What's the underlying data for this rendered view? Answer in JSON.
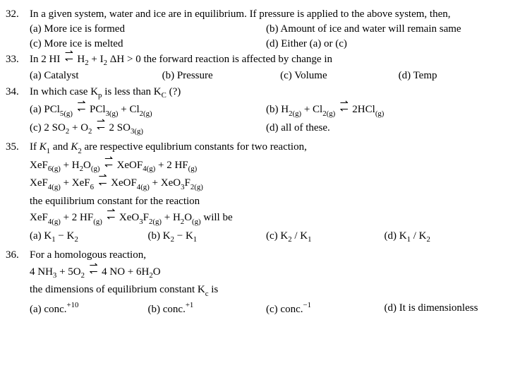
{
  "q32": {
    "num": "32.",
    "stem": "In a given system, water and ice are in equilibrium. If pressure is applied to the above system, then,",
    "a": "(a) More ice is formed",
    "b": "(b) Amount of ice and water will remain same",
    "c": "(c) More ice is melted",
    "d": "(d) Either (a) or (c)"
  },
  "q33": {
    "num": "33.",
    "stem_pre": "In ",
    "stem_eq_l": "2 HI",
    "arr_t": "⇀",
    "arr_b": "↽",
    "stem_eq_r": "H",
    "stem_eq_r2": " + I",
    "stem_dh": " ΔH > 0  the forward reaction is affected by change in",
    "a": "(a) Catalyst",
    "b": "(b) Pressure",
    "c": "(c) Volume",
    "d": "(d) Temp"
  },
  "q34": {
    "num": "34.",
    "stem_1": "In which case K",
    "stem_2": " is less than K",
    "stem_3": " (?)",
    "a_pre": "(a) PCl",
    "a_mid": "PCl",
    "a_end": " + Cl",
    "b_pre": "(b) H",
    "b_mid": " + Cl",
    "b_end": "2HCl",
    "c_pre": "(c) 2 SO",
    "c_mid": " + O",
    "c_end": "2 SO",
    "d": "(d) all of these."
  },
  "q35": {
    "num": "35.",
    "stem_1": "If ",
    "stem_2": " and ",
    "stem_3": " are respective equlibrium constants for two reaction,",
    "r1_l1": "XeF",
    "r1_l2": " + H",
    "r1_l3": "O",
    "r1_r1": "XeOF",
    "r1_r2": " + 2 HF",
    "r2_l1": "XeF",
    "r2_l2": " + XeF",
    "r2_r1": "XeOF",
    "r2_r2": " + XeO",
    "r2_r3": "F",
    "mid": "the equilibrium constant for the reaction",
    "r3_l1": "XeF",
    "r3_l2": " + 2 HF",
    "r3_r1": "XeO",
    "r3_r2": "F",
    "r3_r3": " + H",
    "r3_r4": "O",
    "r3_end": " will be",
    "a_pre": "(a) K",
    "a_mid": " − K",
    "b_pre": "(b) K",
    "b_mid": " − K",
    "c_pre": "(c) K",
    "c_mid": " / K",
    "d_pre": "(d) K",
    "d_mid": " / K"
  },
  "q36": {
    "num": "36.",
    "stem": "For a homologous reaction,",
    "eq_l": " 4 NH",
    "eq_l2": " + 5O",
    "eq_r": "4 NO + 6H",
    "eq_r2": "O",
    "stem2_1": "the dimensions of equilibrium constant K",
    "stem2_2": " is",
    "a_pre": "(a) ",
    "a_conc": "conc.",
    "a_sup": "+10",
    "b_pre": "(b) ",
    "b_conc": "conc.",
    "b_sup": "+1",
    "c_pre": "(c) ",
    "c_conc": "conc.",
    "c_sup": "−1",
    "d": "(d) It is dimensionless"
  }
}
